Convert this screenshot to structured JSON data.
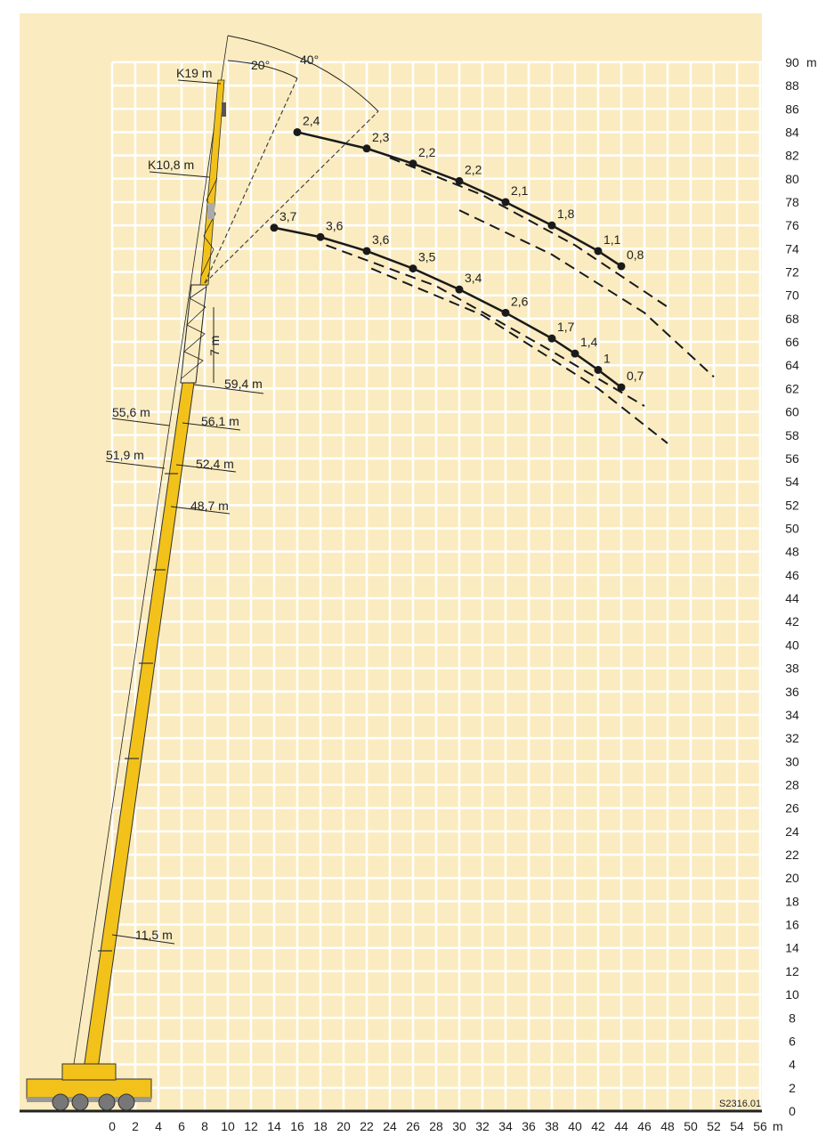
{
  "chart_data": {
    "type": "line",
    "x_unit": "m",
    "y_unit": "m",
    "xlim": [
      0,
      56
    ],
    "ylim": [
      0,
      90
    ],
    "grid": true,
    "x_ticks": [
      "0",
      "2",
      "4",
      "6",
      "8",
      "10",
      "12",
      "14",
      "16",
      "18",
      "20",
      "22",
      "24",
      "26",
      "28",
      "30",
      "32",
      "34",
      "36",
      "38",
      "40",
      "42",
      "44",
      "46",
      "48",
      "50",
      "52",
      "54",
      "56"
    ],
    "y_ticks": [
      "0",
      "2",
      "4",
      "6",
      "8",
      "10",
      "12",
      "14",
      "16",
      "18",
      "20",
      "22",
      "24",
      "26",
      "28",
      "30",
      "32",
      "34",
      "36",
      "38",
      "40",
      "42",
      "44",
      "46",
      "48",
      "50",
      "52",
      "54",
      "56",
      "58",
      "60",
      "62",
      "64",
      "66",
      "68",
      "70",
      "72",
      "74",
      "76",
      "78",
      "80",
      "82",
      "84",
      "86",
      "88",
      "90"
    ],
    "series": [
      {
        "x": [
          16,
          22,
          26,
          30,
          34,
          38,
          42,
          44
        ],
        "y": [
          84.0,
          82.6,
          81.3,
          79.8,
          78.0,
          76.0,
          73.8,
          72.5
        ],
        "labels": [
          "2,4",
          "2,3",
          "2,2",
          "2,2",
          "2,1",
          "1,8",
          "1,1",
          "0,8"
        ]
      },
      {
        "x": [
          14,
          18,
          22,
          26,
          30,
          34,
          38,
          40,
          42,
          44
        ],
        "y": [
          75.8,
          75.0,
          73.8,
          72.3,
          70.5,
          68.5,
          66.3,
          65.0,
          63.6,
          62.1
        ],
        "labels": [
          "3,7",
          "3,6",
          "3,6",
          "3,5",
          "3,4",
          "2,6",
          "1,7",
          "1,4",
          "1",
          "0,7"
        ]
      }
    ],
    "dashed_curves": [
      {
        "x": [
          24.0,
          32,
          40,
          48
        ],
        "y": [
          81.8,
          78.6,
          74.3,
          69.0
        ]
      },
      {
        "x": [
          30,
          38,
          46,
          52
        ],
        "y": [
          77.3,
          73.5,
          68.5,
          63.0
        ]
      },
      {
        "x": [
          18.5,
          28,
          38,
          46
        ],
        "y": [
          74.3,
          70.8,
          65.2,
          60.5
        ]
      },
      {
        "x": [
          22.4,
          32,
          42,
          48
        ],
        "y": [
          72.3,
          68.3,
          62.0,
          57.3
        ]
      }
    ]
  },
  "annotations": {
    "angle_20": "20°",
    "angle_40": "40°",
    "k19": "K19 m",
    "k108": "K10,8 m",
    "seven": "7 m",
    "h594": "59,4 m",
    "h556": "55,6 m",
    "h561": "56,1 m",
    "h519": "51,9 m",
    "h524": "52,4 m",
    "h487": "48,7 m",
    "h115": "11,5 m",
    "axis_unit_x": "m",
    "axis_unit_y": "m",
    "drawing_id": "S2316.01"
  },
  "colors": {
    "background": "#faecc0",
    "grid": "#ffffff",
    "crane_yellow": "#f2c21a",
    "curve": "#1a1a1a"
  }
}
